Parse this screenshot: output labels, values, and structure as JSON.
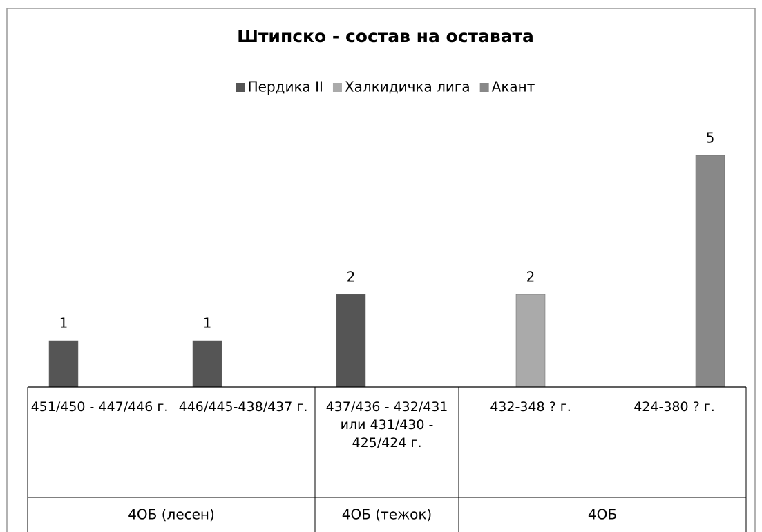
{
  "chart_data": {
    "type": "bar",
    "title": "Штипско - состав на оставата",
    "categories": [
      "451/450 - 447/446 г.",
      "446/445-438/437 г.",
      "437/436 - 432/431 или 431/430 - 425/424 г.",
      "432-348 ? г.",
      "424-380 ? г."
    ],
    "groups": [
      {
        "label": "4ОБ (лесен)",
        "span": 2
      },
      {
        "label": "4ОБ (тежок)",
        "span": 1
      },
      {
        "label": "4ОБ",
        "span": 2
      }
    ],
    "series": [
      {
        "name": "Пердика II",
        "color": "#555555",
        "values": [
          1,
          1,
          2,
          null,
          null
        ]
      },
      {
        "name": "Халкидичка лига",
        "color": "#aaaaaa",
        "values": [
          null,
          null,
          null,
          2,
          null
        ]
      },
      {
        "name": "Акант",
        "color": "#888888",
        "values": [
          null,
          null,
          null,
          null,
          5
        ]
      }
    ],
    "ylim": [
      0,
      6
    ],
    "legend": "top"
  }
}
